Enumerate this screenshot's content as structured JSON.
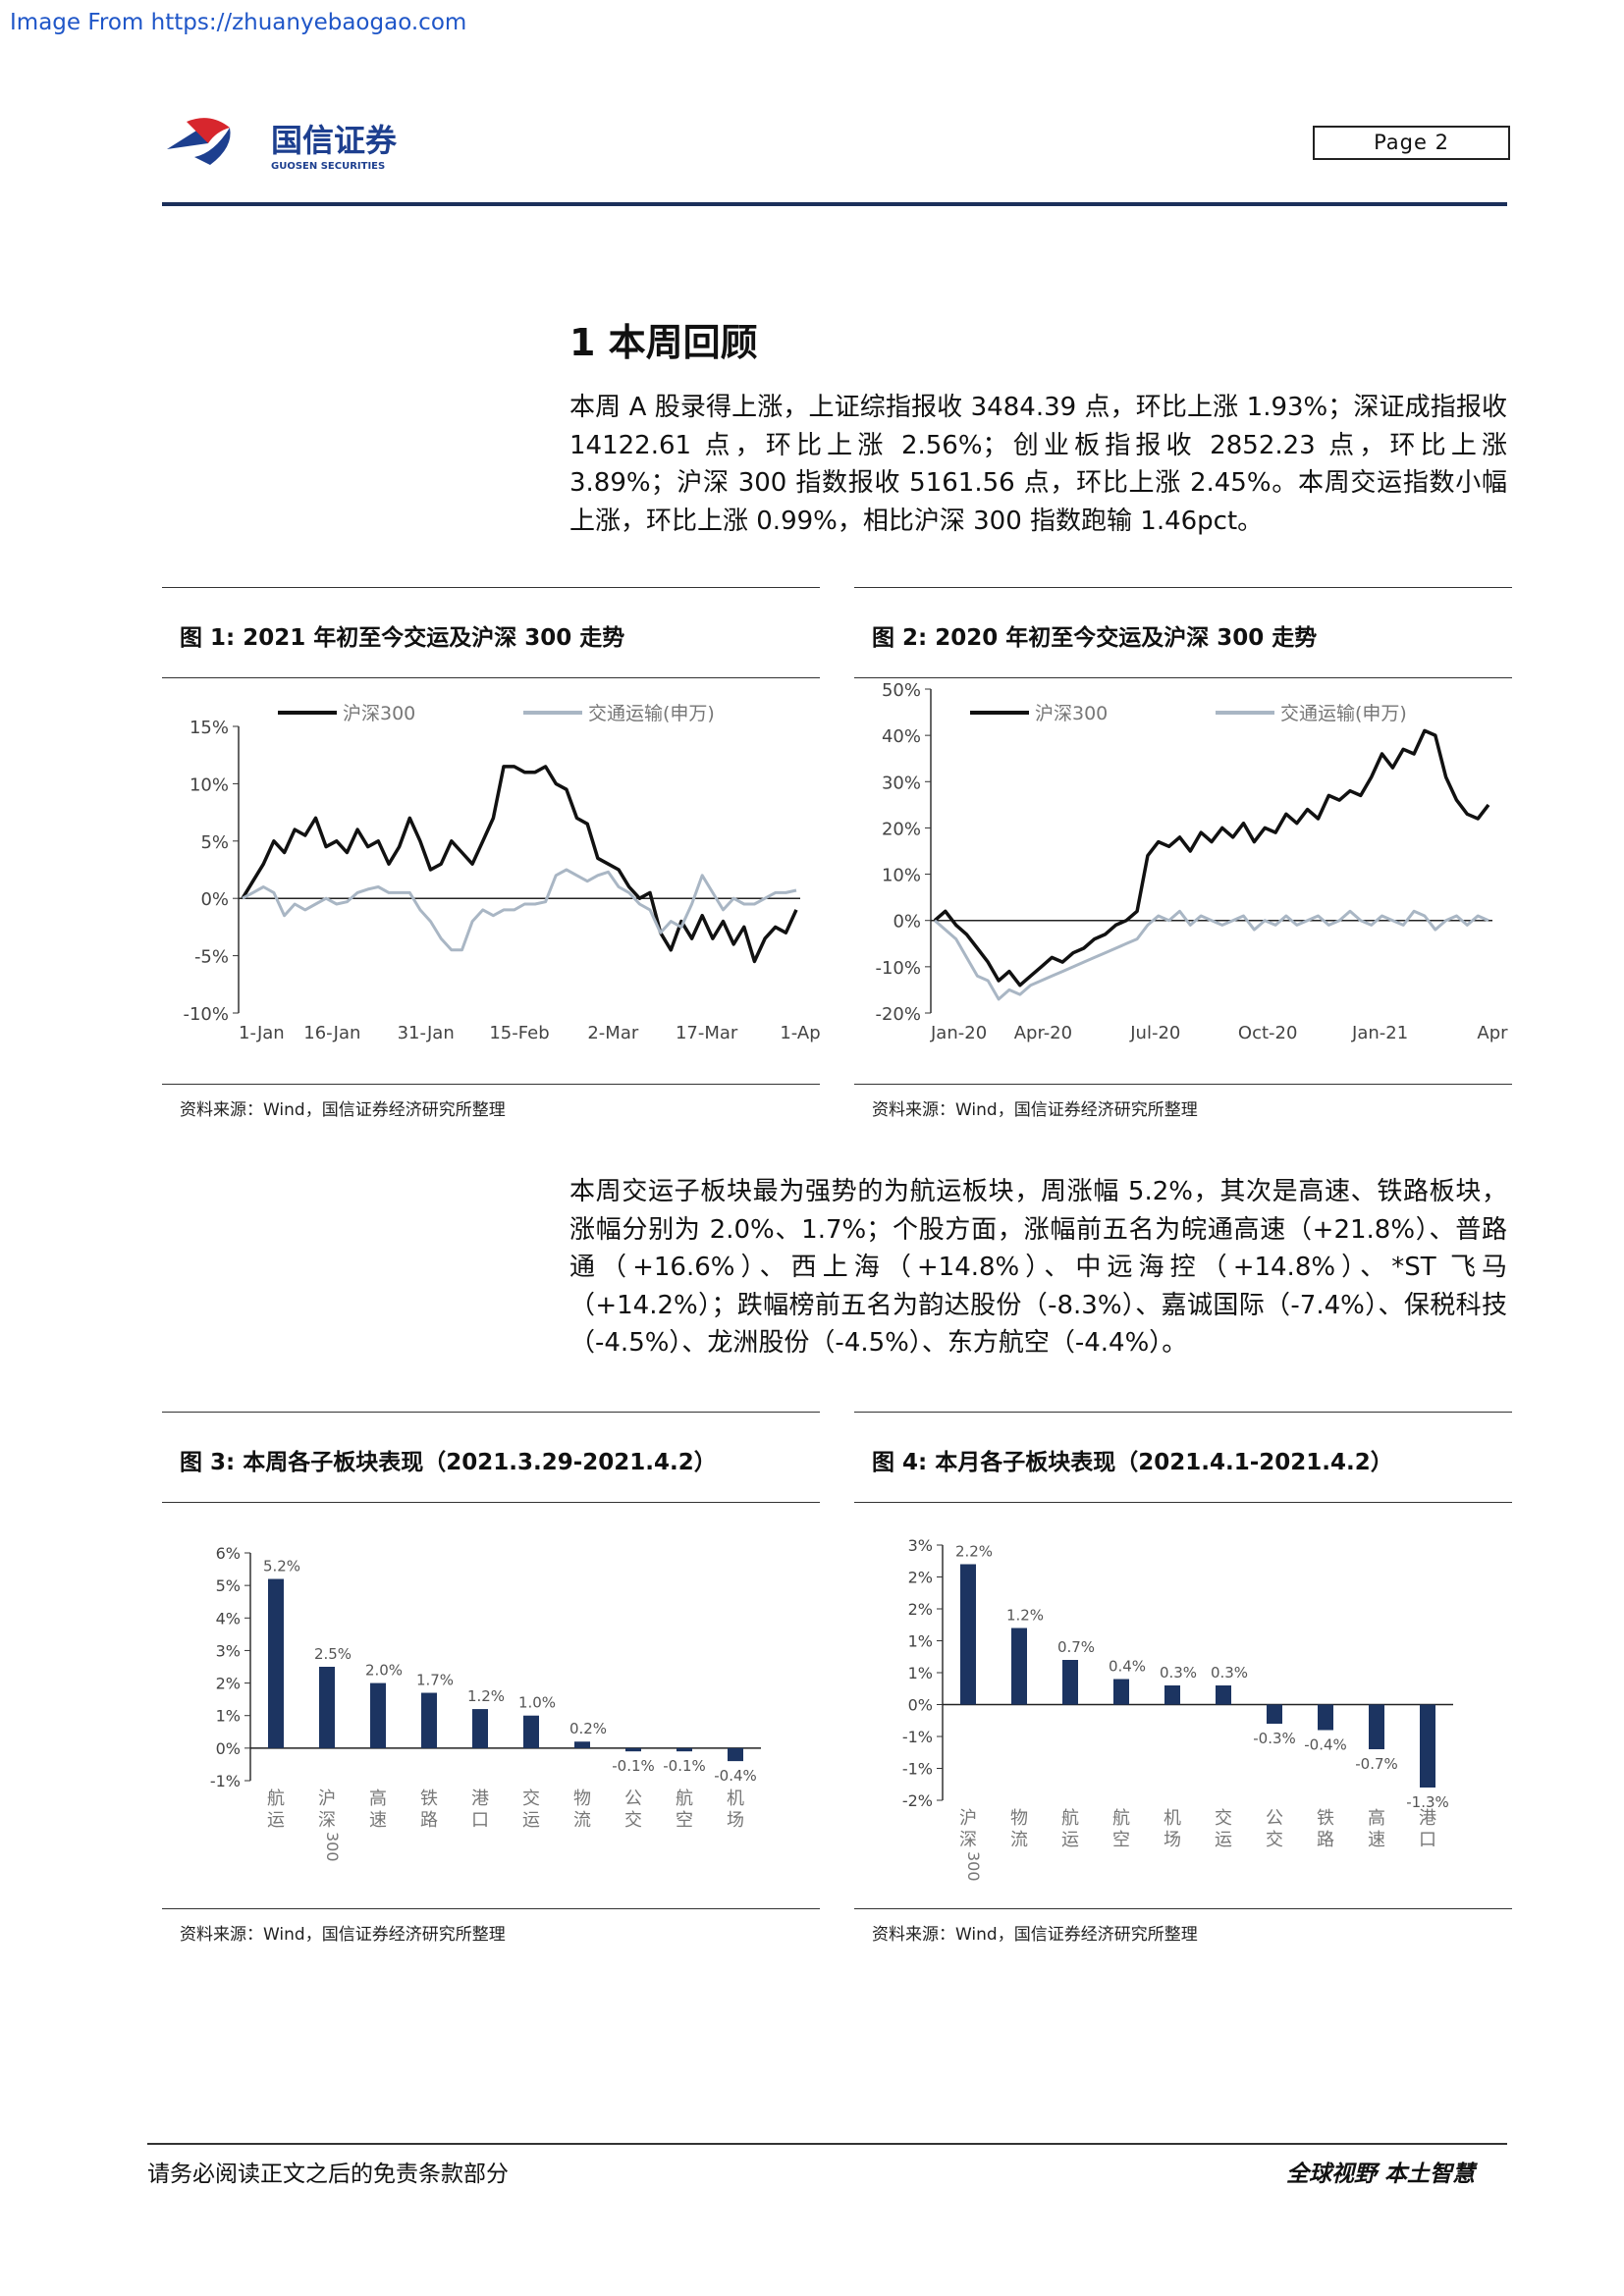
{
  "watermark": "Image From https://zhuanyebaogao.com",
  "header": {
    "logo_cn": "国信证券",
    "logo_en": "GUOSEN SECURITIES",
    "page_label": "Page  2"
  },
  "section": {
    "heading": "1 本周回顾"
  },
  "paragraphs": {
    "p1": "本周 A 股录得上涨，上证综指报收 3484.39 点，环比上涨 1.93%；深证成指报收 14122.61 点，环比上涨 2.56%；创业板指报收 2852.23 点，环比上涨 3.89%；沪深 300 指数报收 5161.56 点，环比上涨 2.45%。本周交运指数小幅上涨，环比上涨 0.99%，相比沪深 300 指数跑输 1.46pct。",
    "p2": "本周交运子板块最为强势的为航运板块，周涨幅 5.2%，其次是高速、铁路板块，涨幅分别为 2.0%、1.7%；个股方面，涨幅前五名为皖通高速（+21.8%）、普路通（+16.6%）、西上海（+14.8%）、中远海控（+14.8%）、*ST 飞马（+14.2%）；跌幅榜前五名为韵达股份（-8.3%）、嘉诚国际（-7.4%）、保税科技（-4.5%）、龙洲股份（-4.5%）、东方航空（-4.4%）。"
  },
  "figures": {
    "fig1": {
      "title": "图 1:  2021 年初至今交运及沪深 300 走势",
      "source": "资料来源：Wind，国信证券经济研究所整理"
    },
    "fig2": {
      "title": "图 2:  2020 年初至今交运及沪深 300 走势",
      "source": "资料来源：Wind，国信证券经济研究所整理"
    },
    "fig3": {
      "title": "图 3:  本周各子板块表现（2021.3.29-2021.4.2）",
      "source": "资料来源：Wind，国信证券经济研究所整理"
    },
    "fig4": {
      "title": "图 4:  本月各子板块表现（2021.4.1-2021.4.2）",
      "source": "资料来源：Wind，国信证券经济研究所整理"
    }
  },
  "footer": {
    "left": "请务必阅读正文之后的免责条款部分",
    "right": "全球视野  本土智慧"
  },
  "colors": {
    "navy": "#1b2f5a",
    "hs300": "#111111",
    "transport": "#a9b6c4",
    "bar": "#1c3461",
    "logo_red": "#d7262d",
    "logo_blue": "#1d3f8f"
  },
  "chart_data": [
    {
      "type": "line",
      "title": "图 1:  2021 年初至今交运及沪深 300 走势",
      "x_ticks": [
        "1-Jan",
        "16-Jan",
        "31-Jan",
        "15-Feb",
        "2-Mar",
        "17-Mar",
        "1-Ap"
      ],
      "y_ticks": [
        "15%",
        "10%",
        "5%",
        "0%",
        "-5%",
        "-10%"
      ],
      "ylim": [
        -10,
        15
      ],
      "legend": [
        "沪深300",
        "交通运输(申万)"
      ],
      "legend_position": "top",
      "series": [
        {
          "name": "沪深300",
          "values": [
            0,
            1.5,
            3,
            5,
            4,
            6,
            5.5,
            7,
            4.5,
            5,
            4,
            6,
            4.5,
            5,
            3,
            4.5,
            7,
            5,
            2.5,
            3,
            5,
            4,
            3,
            5,
            7,
            11.5,
            11.5,
            11,
            11,
            11.5,
            10,
            9.5,
            7,
            6.5,
            3.5,
            3,
            2.5,
            1,
            0,
            0.5,
            -3,
            -4.5,
            -2,
            -3.5,
            -1.5,
            -3.5,
            -2,
            -4,
            -2.5,
            -5.5,
            -3.5,
            -2.5,
            -3,
            -1
          ]
        },
        {
          "name": "交通运输(申万)",
          "values": [
            0,
            0.5,
            1,
            0.5,
            -1.5,
            -0.5,
            -1,
            -0.5,
            0,
            -0.5,
            -0.3,
            0.5,
            0.8,
            1,
            0.5,
            0.5,
            0.5,
            -1,
            -2,
            -3.5,
            -4.5,
            -4.5,
            -2,
            -1,
            -1.5,
            -1,
            -1,
            -0.5,
            -0.5,
            -0.3,
            2,
            2.5,
            2,
            1.5,
            2,
            2.3,
            1,
            0.5,
            -0.5,
            -1,
            -3,
            -2,
            -2.5,
            -0.5,
            2,
            0.5,
            -1,
            0,
            -0.5,
            -0.5,
            0,
            0.5,
            0.5,
            0.7
          ]
        }
      ]
    },
    {
      "type": "line",
      "title": "图 2:  2020 年初至今交运及沪深 300 走势",
      "x_ticks": [
        "Jan-20",
        "Apr-20",
        "Jul-20",
        "Oct-20",
        "Jan-21",
        "Apr"
      ],
      "y_ticks": [
        "50%",
        "40%",
        "30%",
        "20%",
        "10%",
        "0%",
        "-10%",
        "-20%"
      ],
      "ylim": [
        -20,
        50
      ],
      "legend": [
        "沪深300",
        "交通运输(申万)"
      ],
      "legend_position": "top",
      "series": [
        {
          "name": "沪深300",
          "values": [
            0,
            2,
            -1,
            -3,
            -6,
            -9,
            -13,
            -11,
            -14,
            -12,
            -10,
            -8,
            -9,
            -7,
            -6,
            -4,
            -3,
            -1,
            0,
            2,
            14,
            17,
            16,
            18,
            15,
            19,
            17,
            20,
            18,
            21,
            17,
            20,
            19,
            23,
            21,
            24,
            22,
            27,
            26,
            28,
            27,
            31,
            36,
            33,
            37,
            36,
            41,
            40,
            31,
            26,
            23,
            22,
            25
          ]
        },
        {
          "name": "交通运输(申万)",
          "values": [
            0,
            -2,
            -4,
            -8,
            -12,
            -13,
            -17,
            -15,
            -16,
            -14,
            -13,
            -12,
            -11,
            -10,
            -9,
            -8,
            -7,
            -6,
            -5,
            -4,
            -1,
            1,
            0,
            2,
            -1,
            1,
            0,
            -1,
            0,
            1,
            -2,
            0,
            -1,
            1,
            -1,
            0,
            1,
            -1,
            0,
            2,
            0,
            -1,
            1,
            0,
            -1,
            2,
            1,
            -2,
            0,
            1,
            -1,
            1,
            0
          ]
        }
      ]
    },
    {
      "type": "bar",
      "title": "图 3:  本周各子板块表现（2021.3.29-2021.4.2）",
      "categories": [
        "航运",
        "沪深300",
        "高速",
        "铁路",
        "港口",
        "交运",
        "物流",
        "公交",
        "航空",
        "机场"
      ],
      "values": [
        5.2,
        2.5,
        2.0,
        1.7,
        1.2,
        1.0,
        0.2,
        -0.1,
        -0.1,
        -0.4
      ],
      "data_labels": [
        "5.2%",
        "2.5%",
        "2.0%",
        "1.7%",
        "1.2%",
        "1.0%",
        "0.2%",
        "-0.1%",
        "-0.1%",
        "-0.4%"
      ],
      "y_ticks": [
        "6%",
        "5%",
        "4%",
        "3%",
        "2%",
        "1%",
        "0%",
        "-1%"
      ],
      "ylim": [
        -1,
        6
      ]
    },
    {
      "type": "bar",
      "title": "图 4:  本月各子板块表现（2021.4.1-2021.4.2）",
      "categories": [
        "沪深300",
        "物流",
        "航运",
        "航空",
        "机场",
        "交运",
        "公交",
        "铁路",
        "高速",
        "港口"
      ],
      "values": [
        2.2,
        1.2,
        0.7,
        0.4,
        0.3,
        0.3,
        -0.3,
        -0.4,
        -0.7,
        -1.3
      ],
      "data_labels": [
        "2.2%",
        "1.2%",
        "0.7%",
        "0.4%",
        "0.3%",
        "0.3%",
        "-0.3%",
        "-0.4%",
        "-0.7%",
        "-1.3%"
      ],
      "y_ticks": [
        "3%",
        "2%",
        "2%",
        "1%",
        "1%",
        "0%",
        "-1%",
        "-1%",
        "-2%"
      ],
      "ylim": [
        -1.5,
        2.5
      ]
    }
  ]
}
